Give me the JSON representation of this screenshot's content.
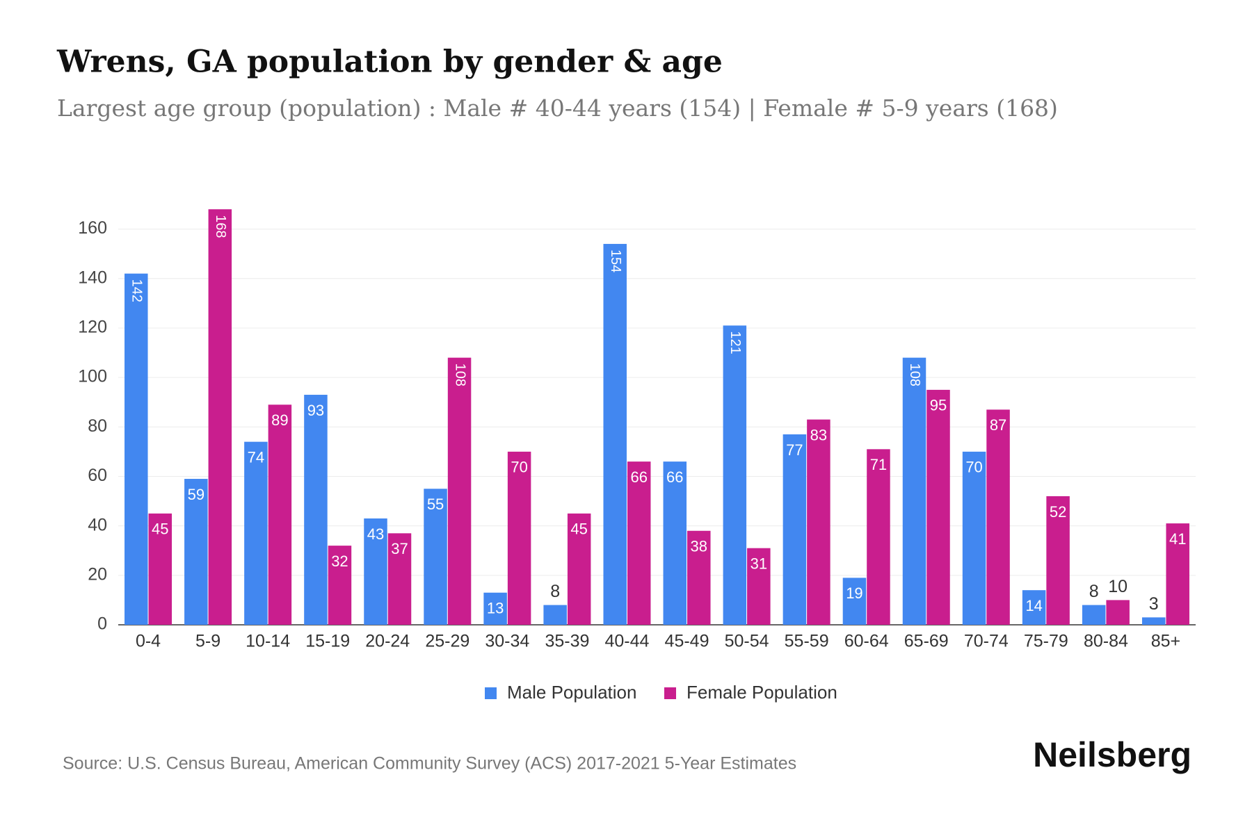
{
  "chart_data": {
    "type": "bar",
    "title": "Wrens, GA population by gender & age",
    "subtitle": "Largest age group (population) : Male # 40-44 years (154) | Female # 5-9 years (168)",
    "categories": [
      "0-4",
      "5-9",
      "10-14",
      "15-19",
      "20-24",
      "25-29",
      "30-34",
      "35-39",
      "40-44",
      "45-49",
      "50-54",
      "55-59",
      "60-64",
      "65-69",
      "70-74",
      "75-79",
      "80-84",
      "85+"
    ],
    "series": [
      {
        "name": "Male Population",
        "color": "#4287f0",
        "values": [
          142,
          59,
          74,
          93,
          43,
          55,
          13,
          8,
          154,
          66,
          121,
          77,
          19,
          108,
          70,
          14,
          8,
          3
        ]
      },
      {
        "name": "Female Population",
        "color": "#c91e8e",
        "values": [
          45,
          168,
          89,
          32,
          37,
          108,
          70,
          45,
          66,
          38,
          31,
          83,
          71,
          95,
          87,
          52,
          10,
          41
        ]
      }
    ],
    "ylim": [
      0,
      170
    ],
    "yticks": [
      0,
      20,
      40,
      60,
      80,
      100,
      120,
      140,
      160
    ],
    "grid": true,
    "source": "Source: U.S. Census Bureau, American Community Survey (ACS) 2017-2021 5-Year Estimates",
    "brand": "Neilsberg"
  }
}
